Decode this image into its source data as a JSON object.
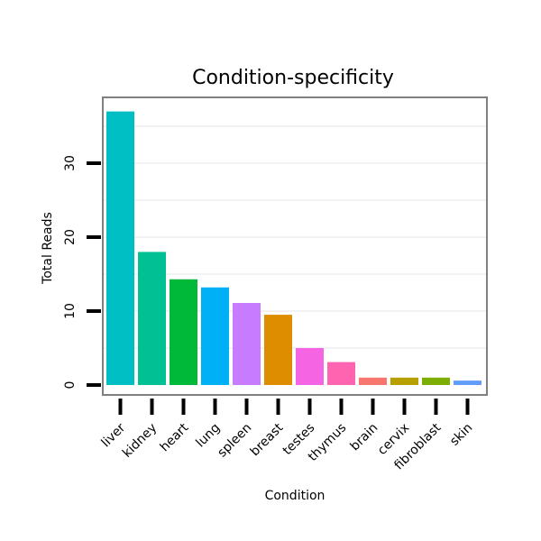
{
  "chart_data": {
    "type": "bar",
    "title": "Condition-specificity",
    "xlabel": "Condition",
    "ylabel": "Total Reads",
    "ylim": [
      0,
      38
    ],
    "yticks": [
      0,
      10,
      20,
      30
    ],
    "categories": [
      "liver",
      "kidney",
      "heart",
      "lung",
      "spleen",
      "breast",
      "testes",
      "thymus",
      "brain",
      "cervix",
      "fibroblast",
      "skin"
    ],
    "values": [
      37,
      18,
      14.3,
      13.2,
      11.1,
      9.5,
      5,
      3.1,
      1,
      1,
      1,
      0.6
    ],
    "colors": [
      "#00BFC4",
      "#00C094",
      "#00B938",
      "#00B0F6",
      "#C77CFF",
      "#DE8C00",
      "#F564E3",
      "#FF64B0",
      "#F8766D",
      "#B79F00",
      "#7CAE00",
      "#619CFF"
    ],
    "grid": true,
    "legend": "none"
  }
}
